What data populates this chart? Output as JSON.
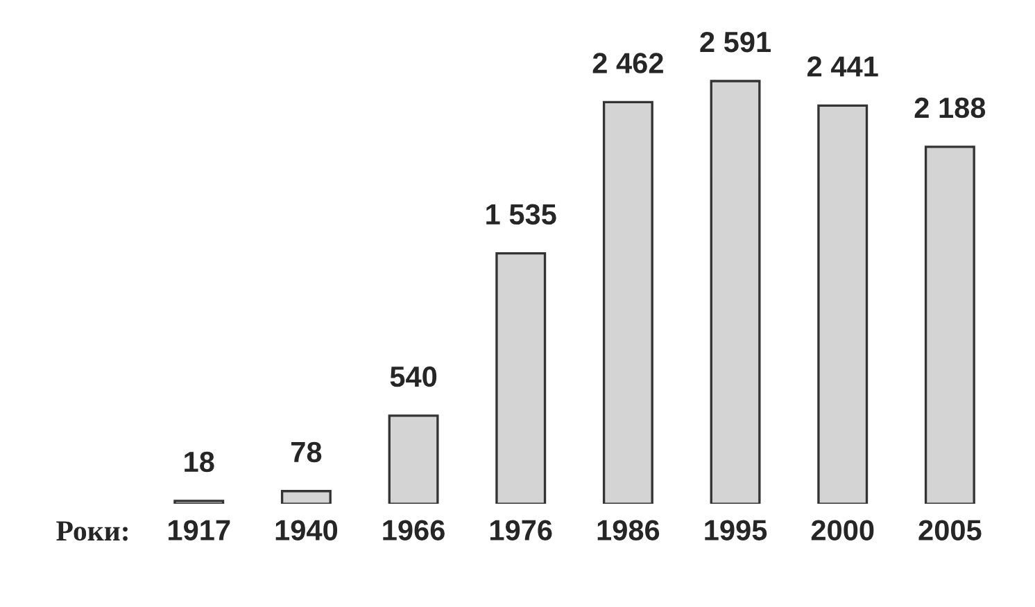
{
  "chart_data": {
    "type": "bar",
    "xlabel": "Роки:",
    "categories": [
      "1917",
      "1940",
      "1966",
      "1976",
      "1986",
      "1995",
      "2000",
      "2005"
    ],
    "values": [
      18,
      78,
      540,
      1535,
      2462,
      2591,
      2441,
      2188
    ],
    "value_labels": [
      "18",
      "78",
      "540",
      "1 535",
      "2 462",
      "2 591",
      "2 441",
      "2 188"
    ],
    "color": "#d4d4d4",
    "grid": false,
    "legend": false
  }
}
